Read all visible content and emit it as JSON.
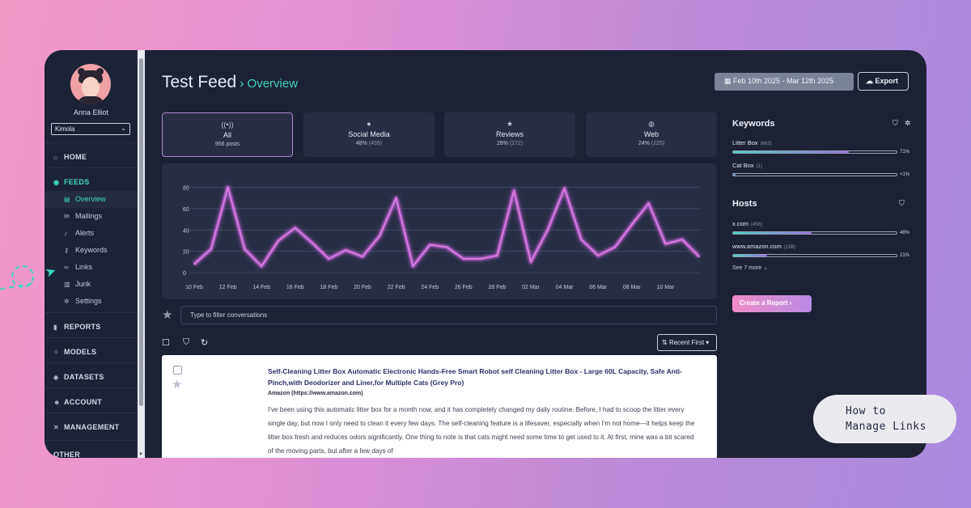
{
  "sidebar": {
    "user_name": "Anna Elliot",
    "org_select": "Kimola",
    "sections": [
      {
        "label": "HOME",
        "icon": "home-icon"
      },
      {
        "label": "FEEDS",
        "icon": "feeds-icon"
      },
      {
        "label": "REPORTS",
        "icon": "reports-icon"
      },
      {
        "label": "MODELS",
        "icon": "models-icon"
      },
      {
        "label": "DATASETS",
        "icon": "datasets-icon"
      },
      {
        "label": "ACCOUNT",
        "icon": "account-icon"
      },
      {
        "label": "MANAGEMENT",
        "icon": "management-icon"
      },
      {
        "label": "OTHER",
        "icon": ""
      }
    ],
    "feed_items": [
      {
        "label": "Overview",
        "icon": "overview-icon",
        "active": true
      },
      {
        "label": "Mailings",
        "icon": "mail-icon"
      },
      {
        "label": "Alerts",
        "icon": "bell-icon"
      },
      {
        "label": "Keywords",
        "icon": "key-icon"
      },
      {
        "label": "Links",
        "icon": "link-icon"
      },
      {
        "label": "Junk",
        "icon": "trash-icon"
      },
      {
        "label": "Settings",
        "icon": "gear-icon"
      }
    ]
  },
  "header": {
    "title": "Test Feed",
    "subtitle": "Overview",
    "date_range": "Feb 10th 2025 - Mar 12th 2025",
    "export_label": "Export"
  },
  "cards": [
    {
      "label": "All",
      "value": "956 posts",
      "pct": ""
    },
    {
      "label": "Social Media",
      "value": "48%",
      "pct": "(459)"
    },
    {
      "label": "Reviews",
      "value": "28%",
      "pct": "(272)"
    },
    {
      "label": "Web",
      "value": "24%",
      "pct": "(225)"
    }
  ],
  "filter": {
    "placeholder": "Type to filter conversations"
  },
  "sort": {
    "label": "Recent First"
  },
  "post": {
    "title": "Self-Cleaning Litter Box Automatic Electronic Hands-Free Smart Robot self Cleaning Litter Box - Large 60L Capacity, Safe Anti-Pinch,with Deodorizer and Liner,for Multiple Cats (Grey Pro)",
    "source": "Amazon (https://www.amazon.com)",
    "body": "I've been using this automatic litter box for a month now, and it has completely changed my daily routine. Before, I had to scoop the litter every single day, but now I only need to clean it every few days. The self-cleaning feature is a lifesaver, especially when I'm not home—it helps keep the litter box fresh and reduces odors significantly. One thing to note is that cats might need some time to get used to it. At first, mine was a bit scared of the moving parts, but after a few days of"
  },
  "keywords": {
    "title": "Keywords",
    "items": [
      {
        "name": "Litter Box",
        "count": "(683)",
        "pct": "71%",
        "fill": 0.71
      },
      {
        "name": "Cat Box",
        "count": "(1)",
        "pct": "<1%",
        "fill": 0.005
      }
    ]
  },
  "hosts": {
    "title": "Hosts",
    "items": [
      {
        "name": "x.com",
        "count": "(456)",
        "pct": "48%",
        "fill": 0.48
      },
      {
        "name": "www.amazon.com",
        "count": "(198)",
        "pct": "21%",
        "fill": 0.21
      }
    ],
    "see_more": "See 7 more"
  },
  "report_button": "Create a Report",
  "callout": {
    "line1": "How to",
    "line2": "Manage Links"
  },
  "colors": {
    "accent": "#3ed6c3",
    "line": "#d77be0",
    "background": "#1c2234"
  },
  "chart_data": {
    "type": "line",
    "x": [
      "10 Feb",
      "11 Feb",
      "12 Feb",
      "13 Feb",
      "14 Feb",
      "15 Feb",
      "16 Feb",
      "17 Feb",
      "18 Feb",
      "19 Feb",
      "20 Feb",
      "21 Feb",
      "22 Feb",
      "23 Feb",
      "24 Feb",
      "25 Feb",
      "26 Feb",
      "27 Feb",
      "28 Feb",
      "01 Mar",
      "02 Mar",
      "03 Mar",
      "04 Mar",
      "05 Mar",
      "06 Mar",
      "07 Mar",
      "08 Mar",
      "09 Mar",
      "10 Mar",
      "11 Mar",
      "12 Mar"
    ],
    "tick_labels": [
      "10 Feb",
      "12 Feb",
      "14 Feb",
      "16 Feb",
      "18 Feb",
      "20 Feb",
      "22 Feb",
      "24 Feb",
      "26 Feb",
      "28 Feb",
      "02 Mar",
      "04 Mar",
      "06 Mar",
      "08 Mar",
      "10 Mar"
    ],
    "values": [
      8,
      22,
      80,
      22,
      6,
      30,
      42,
      28,
      13,
      21,
      15,
      34,
      70,
      6,
      26,
      24,
      13,
      13,
      16,
      77,
      10,
      40,
      79,
      31,
      16,
      24,
      45,
      65,
      27,
      31,
      15
    ],
    "yticks": [
      0,
      20,
      40,
      60,
      80
    ],
    "ylim": [
      0,
      85
    ],
    "grid": true
  }
}
